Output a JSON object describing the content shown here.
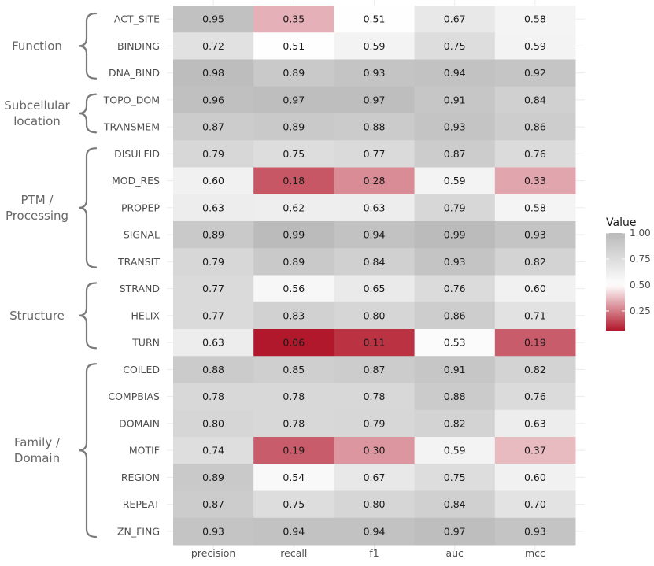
{
  "chart_data": {
    "type": "heatmap",
    "x_categories": [
      "precision",
      "recall",
      "f1",
      "auc",
      "mcc"
    ],
    "y_categories": [
      "ACT_SITE",
      "BINDING",
      "DNA_BIND",
      "TOPO_DOM",
      "TRANSMEM",
      "DISULFID",
      "MOD_RES",
      "PROPEP",
      "SIGNAL",
      "TRANSIT",
      "STRAND",
      "HELIX",
      "TURN",
      "COILED",
      "COMPBIAS",
      "DOMAIN",
      "MOTIF",
      "REGION",
      "REPEAT",
      "ZN_FING"
    ],
    "values": [
      [
        0.95,
        0.35,
        0.51,
        0.67,
        0.58
      ],
      [
        0.72,
        0.51,
        0.59,
        0.75,
        0.59
      ],
      [
        0.98,
        0.89,
        0.93,
        0.94,
        0.92
      ],
      [
        0.96,
        0.97,
        0.97,
        0.91,
        0.84
      ],
      [
        0.87,
        0.89,
        0.88,
        0.93,
        0.86
      ],
      [
        0.79,
        0.75,
        0.77,
        0.87,
        0.76
      ],
      [
        0.6,
        0.18,
        0.28,
        0.59,
        0.33
      ],
      [
        0.63,
        0.62,
        0.63,
        0.79,
        0.58
      ],
      [
        0.89,
        0.99,
        0.94,
        0.99,
        0.93
      ],
      [
        0.79,
        0.89,
        0.84,
        0.93,
        0.82
      ],
      [
        0.77,
        0.56,
        0.65,
        0.76,
        0.6
      ],
      [
        0.77,
        0.83,
        0.8,
        0.86,
        0.71
      ],
      [
        0.63,
        0.06,
        0.11,
        0.53,
        0.19
      ],
      [
        0.88,
        0.85,
        0.87,
        0.91,
        0.82
      ],
      [
        0.78,
        0.78,
        0.78,
        0.88,
        0.76
      ],
      [
        0.8,
        0.78,
        0.79,
        0.82,
        0.63
      ],
      [
        0.74,
        0.19,
        0.3,
        0.59,
        0.37
      ],
      [
        0.89,
        0.54,
        0.67,
        0.75,
        0.6
      ],
      [
        0.87,
        0.75,
        0.8,
        0.84,
        0.7
      ],
      [
        0.93,
        0.94,
        0.94,
        0.97,
        0.93
      ]
    ],
    "groups": [
      {
        "label": "Function",
        "start": 0,
        "end": 2
      },
      {
        "label": "Subcellular\nlocation",
        "start": 3,
        "end": 4
      },
      {
        "label": "PTM /\nProcessing",
        "start": 5,
        "end": 9
      },
      {
        "label": "Structure",
        "start": 10,
        "end": 12
      },
      {
        "label": "Family /\nDomain",
        "start": 13,
        "end": 19
      }
    ],
    "legend": {
      "title": "Value",
      "ticks": [
        "1.00",
        "0.75",
        "0.50",
        "0.25"
      ],
      "tick_values": [
        1.0,
        0.75,
        0.5,
        0.25
      ],
      "range": [
        0.06,
        1.0
      ],
      "placement": "right"
    },
    "colors": {
      "low": "#b2182b",
      "mid": "#ffffff",
      "high": "#bababa",
      "midpoint": 0.5
    }
  }
}
